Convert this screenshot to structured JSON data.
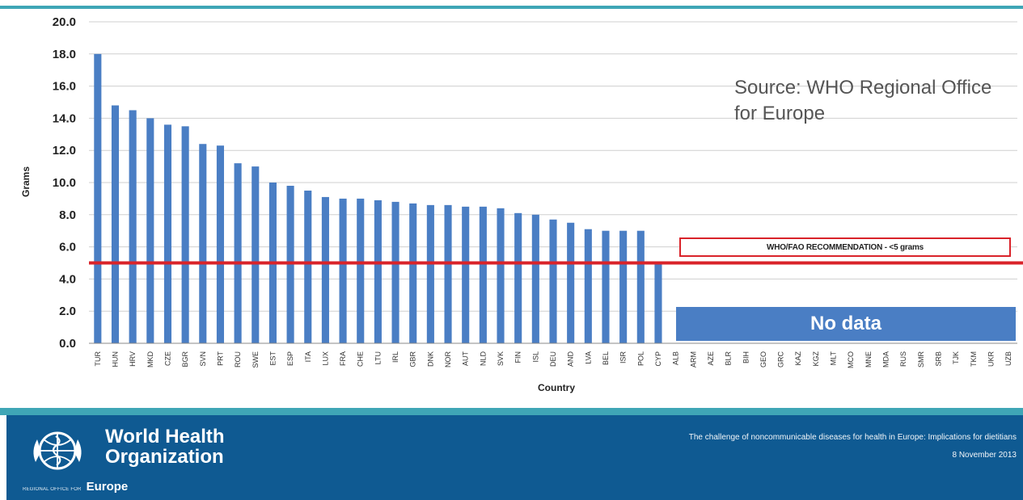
{
  "chart_data": {
    "type": "bar",
    "xlabel": "Country",
    "ylabel": "Grams",
    "ylim": [
      0,
      20
    ],
    "yticks": [
      "0.0",
      "2.0",
      "4.0",
      "6.0",
      "8.0",
      "10.0",
      "12.0",
      "14.0",
      "16.0",
      "18.0",
      "20.0"
    ],
    "grid": true,
    "bar_color": "#4a7ec4",
    "categories": [
      "TUR",
      "HUN",
      "HRV",
      "MKD",
      "CZE",
      "BGR",
      "SVN",
      "PRT",
      "ROU",
      "SWE",
      "EST",
      "ESP",
      "ITA",
      "LUX",
      "FRA",
      "CHE",
      "LTU",
      "IRL",
      "GBR",
      "DNK",
      "NOR",
      "AUT",
      "NLD",
      "SVK",
      "FIN",
      "ISL",
      "DEU",
      "AND",
      "LVA",
      "BEL",
      "ISR",
      "POL",
      "CYP",
      "ALB",
      "ARM",
      "AZE",
      "BLR",
      "BIH",
      "GEO",
      "GRC",
      "KAZ",
      "KGZ",
      "MLT",
      "MCO",
      "MNE",
      "MDA",
      "RUS",
      "SMR",
      "SRB",
      "TJK",
      "TKM",
      "UKR",
      "UZB"
    ],
    "values": [
      18.0,
      14.8,
      14.5,
      14.0,
      13.6,
      13.5,
      12.4,
      12.3,
      11.2,
      11.0,
      10.0,
      9.8,
      9.5,
      9.1,
      9.0,
      9.0,
      8.9,
      8.8,
      8.7,
      8.6,
      8.6,
      8.5,
      8.5,
      8.4,
      8.1,
      8.0,
      7.7,
      7.5,
      7.1,
      7.0,
      7.0,
      7.0,
      5.0,
      null,
      null,
      null,
      null,
      null,
      null,
      null,
      null,
      null,
      null,
      null,
      null,
      null,
      null,
      null,
      null,
      null,
      null,
      null,
      null
    ],
    "reference_line": {
      "value": 5,
      "color": "#d9232a",
      "label": "WHO/FAO RECOMMENDATION - <5 grams"
    },
    "no_data_label": "No data",
    "annotation": "Source: WHO Regional Office for Europe"
  },
  "footer": {
    "org_line1": "World Health",
    "org_line2": "Organization",
    "office_small": "REGIONAL OFFICE FOR",
    "region": "Europe",
    "title": "The challenge of noncommunicable diseases for health in Europe: Implications for dietitians",
    "date": "8 November 2013"
  },
  "colors": {
    "accent": "#3fa6b6",
    "footer_bg": "#0f5a92",
    "bar": "#4a7ec4",
    "reference": "#d9232a"
  }
}
